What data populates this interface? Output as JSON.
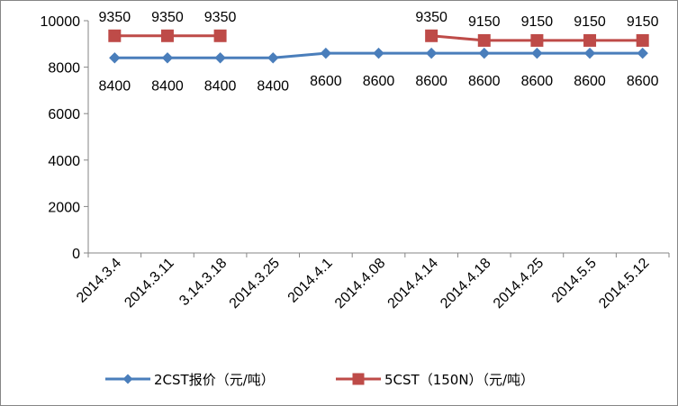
{
  "chart_data": {
    "type": "line",
    "categories": [
      "2014.3.4",
      "2014.3.11",
      "3.14.3.18",
      "2014.3.25",
      "2014.4.1",
      "2014.4.08",
      "2014.4.14",
      "2014.4.18",
      "2014.4.25",
      "2014.5.5",
      "2014.5.12"
    ],
    "series": [
      {
        "name": "2CST报价（元/吨）",
        "values": [
          8400,
          8400,
          8400,
          8400,
          8600,
          8600,
          8600,
          8600,
          8600,
          8600,
          8600
        ],
        "labels": [
          "8400",
          "8400",
          "8400",
          "8400",
          "8600",
          "8600",
          "8600",
          "8600",
          "8600",
          "8600",
          "8600"
        ],
        "color": "#4a7ebb",
        "marker": "diamond"
      },
      {
        "name": "5CST（150N）（元/吨）",
        "values": [
          9350,
          9350,
          9350,
          null,
          null,
          null,
          9350,
          9150,
          9150,
          9150,
          9150
        ],
        "labels": [
          "9350",
          "9350",
          "9350",
          null,
          null,
          null,
          "9350",
          "9150",
          "9150",
          "9150",
          "9150"
        ],
        "color": "#be4b48",
        "marker": "square"
      }
    ],
    "ylim": [
      0,
      10000
    ],
    "yticks": [
      "0",
      "2000",
      "4000",
      "6000",
      "8000",
      "10000"
    ],
    "grid": false,
    "legend": "bottom",
    "title": "",
    "xlabel": "",
    "ylabel": ""
  }
}
